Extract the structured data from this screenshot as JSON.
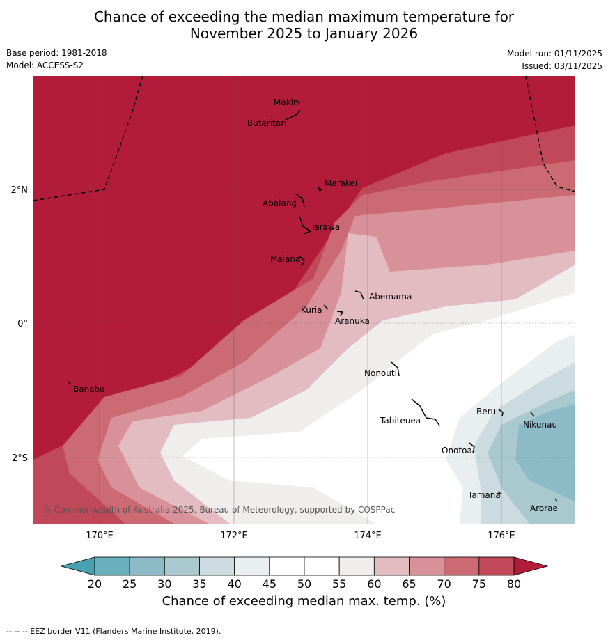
{
  "title": {
    "line1": "Chance of exceeding the median maximum temperature for",
    "line2": "November 2025 to January 2026"
  },
  "meta": {
    "base_period": "Base period: 1981-2018",
    "model": "Model: ACCESS-S2",
    "model_run": "Model run: 01/11/2025",
    "issued": "Issued: 03/11/2025"
  },
  "axes": {
    "lat_labels": [
      "2°N",
      "0°",
      "2°S"
    ],
    "lon_labels": [
      "170°E",
      "172°E",
      "174°E",
      "176°E"
    ]
  },
  "places": [
    "Makin",
    "Butaritari",
    "Marakei",
    "Abaiang",
    "Tarawa",
    "Maiana",
    "Abemama",
    "Kuria",
    "Aranuka",
    "Nonouti",
    "Banaba",
    "Tabiteuea",
    "Beru",
    "Nikunau",
    "Onotoa",
    "Tamana",
    "Arorae"
  ],
  "copyright": "© Commonwealth of Australia 2025, Bureau of Meteorology, supported by COSPPac",
  "colorbar": {
    "ticks": [
      "20",
      "25",
      "30",
      "35",
      "40",
      "45",
      "50",
      "55",
      "60",
      "65",
      "70",
      "75",
      "80"
    ],
    "colors": [
      "#6aafbc",
      "#8cbbc7",
      "#a9c9cf",
      "#cbdbdf",
      "#e9eff1",
      "#ffffff",
      "#ffffff",
      "#efeeec",
      "#e2bcc0",
      "#d89198",
      "#cc6a74",
      "#c04858"
    ],
    "low_color": "#49a1b0",
    "high_color": "#b21c39",
    "title": "Chance of exceeding median max. temp. (%)"
  },
  "footnote": "--  --  -- EEZ border V11 (Flanders Marine Institute, 2019)."
}
